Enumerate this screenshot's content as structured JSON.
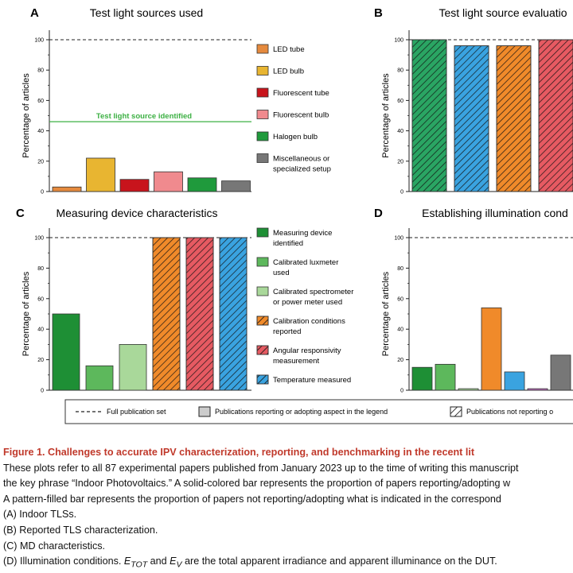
{
  "colors": {
    "led_tube": "#e58a3e",
    "led_bulb": "#e8b531",
    "fluorescent_tube": "#c8141c",
    "fluorescent_bulb": "#f08a8e",
    "halogen_bulb": "#1f9a3c",
    "misc": "#777777",
    "dark_green": "#1e8f35",
    "mid_green": "#5db85c",
    "light_green": "#a9d89a",
    "orange": "#f08a2a",
    "red_pink": "#e65a62",
    "blue": "#3aa3e0",
    "purple": "#c06fc0",
    "threshold_green": "#3cb043"
  },
  "chart_data": [
    {
      "panel": "A",
      "type": "bar",
      "title": "Test light sources used",
      "ylabel": "Percentage of articles",
      "ylim": [
        0,
        100
      ],
      "yticks": [
        0,
        20,
        40,
        60,
        80,
        100
      ],
      "reference_line": {
        "value": 100,
        "label": "Full publication set"
      },
      "threshold_line": {
        "value": 46,
        "label": "Test light source identified"
      },
      "categories": [
        "LED tube",
        "LED bulb",
        "Fluorescent tube",
        "Fluorescent bulb",
        "Halogen bulb",
        "Miscellaneous or specialized setup"
      ],
      "values": [
        3,
        22,
        8,
        13,
        9,
        7
      ],
      "patterned": [
        false,
        false,
        false,
        false,
        false,
        false
      ],
      "colors": [
        "#e58a3e",
        "#e8b531",
        "#c8141c",
        "#f08a8e",
        "#1f9a3c",
        "#777777"
      ],
      "legend": [
        "LED tube",
        "LED bulb",
        "Fluorescent tube",
        "Fluorescent bulb",
        "Halogen bulb",
        "Miscellaneous or|specialized setup"
      ]
    },
    {
      "panel": "B",
      "type": "bar",
      "title": "Test light source evaluatio",
      "ylabel": "Percentage of articles",
      "ylim": [
        0,
        100
      ],
      "yticks": [
        0,
        20,
        40,
        60,
        80,
        100
      ],
      "values": [
        100,
        96,
        96,
        100
      ],
      "patterned": [
        true,
        true,
        true,
        true
      ],
      "colors": [
        "#2aa563",
        "#3aa3e0",
        "#f08a2a",
        "#e65a62"
      ]
    },
    {
      "panel": "C",
      "type": "bar",
      "title": "Measuring device characteristics",
      "ylabel": "Percentage of articles",
      "ylim": [
        0,
        100
      ],
      "yticks": [
        0,
        20,
        40,
        60,
        80,
        100
      ],
      "categories": [
        "Measuring device identified",
        "Calibrated luxmeter used",
        "Calibrated spectrometer or power meter used",
        "Calibration conditions reported",
        "Angular responsivity measurement",
        "Temperature measured"
      ],
      "values": [
        50,
        16,
        30,
        100,
        100,
        100
      ],
      "patterned": [
        false,
        false,
        false,
        true,
        true,
        true
      ],
      "colors": [
        "#1e8f35",
        "#5db85c",
        "#a9d89a",
        "#f08a2a",
        "#e65a62",
        "#3aa3e0"
      ],
      "legend": [
        "Measuring device|identified",
        "Calibrated luxmeter|used",
        "Calibrated spectrometer|or power meter used",
        "Calibration conditions|reported",
        "Angular responsivity|measurement",
        "Temperature measured"
      ]
    },
    {
      "panel": "D",
      "type": "bar",
      "title": "Establishing illumination cond",
      "ylabel": "Percentage of articles",
      "ylim": [
        0,
        100
      ],
      "yticks": [
        0,
        20,
        40,
        60,
        80,
        100
      ],
      "values": [
        15,
        17,
        1,
        54,
        12,
        1,
        23
      ],
      "patterned": [
        false,
        false,
        false,
        false,
        false,
        false,
        false
      ],
      "colors": [
        "#1e8f35",
        "#5db85c",
        "#a9d89a",
        "#f08a2a",
        "#3aa3e0",
        "#c06fc0",
        "#777777"
      ]
    }
  ],
  "bottom_legend": {
    "full_set": "Full publication set",
    "reporting": "Publications reporting or adopting aspect in the legend",
    "not_reporting": "Publications not reporting o"
  },
  "caption": {
    "title": "Figure 1.  Challenges to accurate IPV characterization, reporting, and benchmarking in the recent lit",
    "lines": [
      "These plots refer to all 87 experimental papers published from January 2023 up to the time of writing this manuscript",
      "the key phrase “Indoor Photovoltaics.” A solid-colored bar represents the proportion of papers reporting/adopting w",
      "A pattern-filled bar represents the proportion of papers not reporting/adopting what is indicated in the correspond",
      "(A) Indoor TLSs.",
      "(B) Reported TLS characterization.",
      "(C) MD characteristics."
    ],
    "last_line_prefix": "(D) Illumination conditions. ",
    "etot": "E",
    "etot_sub": "TOT",
    "and_text": " and ",
    "ev": "E",
    "ev_sub": "V",
    "last_line_suffix": " are the total apparent irradiance and apparent illuminance on the DUT."
  }
}
